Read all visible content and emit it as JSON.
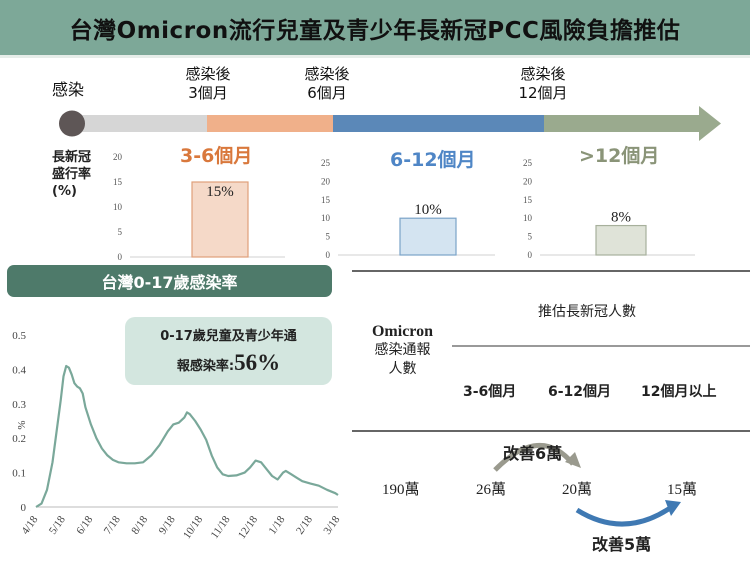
{
  "title": "台灣Omicron流行兒童及青少年長新冠PCC風險負擔推估",
  "timeline": {
    "start_label": "感染",
    "marks": [
      {
        "line1": "感染後",
        "line2": "3個月"
      },
      {
        "line1": "感染後",
        "line2": "6個月"
      },
      {
        "line1": "感染後",
        "line2": "12個月"
      }
    ],
    "colors": {
      "gray": "#d6d6d6",
      "orange": "#f0b08a",
      "blue": "#5b88b8",
      "green": "#9aaa8e"
    }
  },
  "prevalence_label": {
    "line1": "長新冠",
    "line2": "盛行率",
    "line3": "(%)"
  },
  "chart_data": [
    {
      "type": "bar",
      "title": "3-6個月",
      "categories": [
        ""
      ],
      "values": [
        15
      ],
      "value_labels": [
        "15%"
      ],
      "ylim": [
        0,
        20
      ],
      "yticks": [
        "0",
        "5",
        "10",
        "15",
        "20"
      ],
      "color": "#f5d9c8",
      "stroke": "#e0a07a",
      "title_color": "#d9783c"
    },
    {
      "type": "bar",
      "title": "6-12個月",
      "categories": [
        ""
      ],
      "values": [
        10
      ],
      "value_labels": [
        "10%"
      ],
      "ylim": [
        0,
        25
      ],
      "yticks": [
        "0",
        "5",
        "10",
        "15",
        "20",
        "25"
      ],
      "color": "#d4e4f1",
      "stroke": "#7aa3c9",
      "title_color": "#4f86c6"
    },
    {
      "type": "bar",
      "title": ">12個月",
      "categories": [
        ""
      ],
      "values": [
        8
      ],
      "value_labels": [
        "8%"
      ],
      "ylim": [
        0,
        25
      ],
      "yticks": [
        "0",
        "5",
        "10",
        "15",
        "20",
        "25"
      ],
      "color": "#dfe3d8",
      "stroke": "#a7b09c",
      "title_color": "#8a9478"
    },
    {
      "type": "line",
      "title": "台灣0-17歲感染率",
      "ylabel": "%",
      "ylim": [
        0,
        0.5
      ],
      "yticks": [
        "0",
        "0.1",
        "0.2",
        "0.3",
        "0.4",
        "0.5"
      ],
      "x": [
        "4/18",
        "5/18",
        "6/18",
        "7/18",
        "8/18",
        "9/18",
        "10/18",
        "11/18",
        "12/18",
        "1/18",
        "2/18",
        "3/18"
      ],
      "series": [
        {
          "color": "#7aa89a",
          "points": [
            [
              0,
              0.0
            ],
            [
              0.2,
              0.01
            ],
            [
              0.4,
              0.05
            ],
            [
              0.6,
              0.13
            ],
            [
              0.75,
              0.22
            ],
            [
              0.9,
              0.31
            ],
            [
              1.0,
              0.38
            ],
            [
              1.1,
              0.41
            ],
            [
              1.2,
              0.405
            ],
            [
              1.3,
              0.385
            ],
            [
              1.4,
              0.36
            ],
            [
              1.5,
              0.35
            ],
            [
              1.6,
              0.345
            ],
            [
              1.7,
              0.33
            ],
            [
              1.8,
              0.29
            ],
            [
              2.0,
              0.24
            ],
            [
              2.2,
              0.2
            ],
            [
              2.4,
              0.17
            ],
            [
              2.6,
              0.15
            ],
            [
              2.8,
              0.137
            ],
            [
              3.0,
              0.13
            ],
            [
              3.3,
              0.127
            ],
            [
              3.6,
              0.127
            ],
            [
              3.9,
              0.13
            ],
            [
              4.2,
              0.15
            ],
            [
              4.5,
              0.18
            ],
            [
              4.8,
              0.22
            ],
            [
              5.0,
              0.24
            ],
            [
              5.2,
              0.245
            ],
            [
              5.4,
              0.26
            ],
            [
              5.5,
              0.275
            ],
            [
              5.6,
              0.27
            ],
            [
              5.8,
              0.25
            ],
            [
              6.0,
              0.225
            ],
            [
              6.2,
              0.195
            ],
            [
              6.4,
              0.15
            ],
            [
              6.6,
              0.115
            ],
            [
              6.8,
              0.095
            ],
            [
              7.0,
              0.09
            ],
            [
              7.3,
              0.092
            ],
            [
              7.6,
              0.1
            ],
            [
              7.8,
              0.115
            ],
            [
              8.0,
              0.135
            ],
            [
              8.2,
              0.13
            ],
            [
              8.4,
              0.11
            ],
            [
              8.6,
              0.09
            ],
            [
              8.8,
              0.08
            ],
            [
              9.0,
              0.1
            ],
            [
              9.1,
              0.105
            ],
            [
              9.3,
              0.095
            ],
            [
              9.5,
              0.085
            ],
            [
              9.7,
              0.075
            ],
            [
              10.0,
              0.068
            ],
            [
              10.3,
              0.062
            ],
            [
              10.6,
              0.05
            ],
            [
              10.9,
              0.04
            ],
            [
              11.0,
              0.035
            ]
          ]
        }
      ]
    }
  ],
  "rate_box": {
    "line1": "0-17歲兒童及青少年通",
    "line2_prefix": "報感染率:",
    "value": "56%"
  },
  "table": {
    "row_label_line1": "Omicron",
    "row_label_line2": "感染通報",
    "row_label_line3": "人數",
    "header": "推估長新冠人數",
    "cols": [
      "3-6個月",
      "6-12個月",
      "12個月以上"
    ],
    "values": {
      "reported": "190萬",
      "c1": "26萬",
      "c2": "20萬",
      "c3": "15萬"
    },
    "improve1": "改善6萬",
    "improve2": "改善5萬"
  }
}
